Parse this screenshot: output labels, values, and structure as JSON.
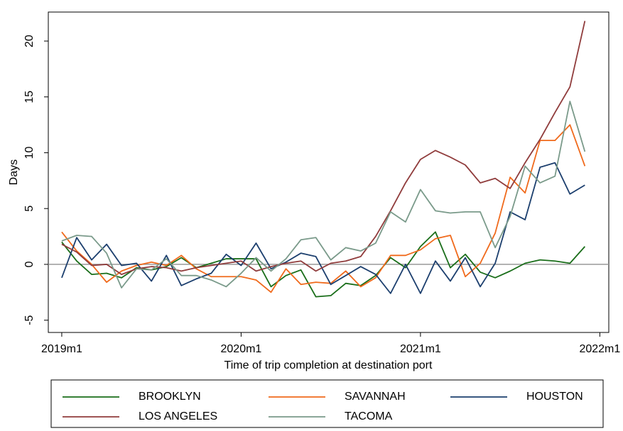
{
  "chart_data": {
    "type": "line",
    "y_label": "Days",
    "x_label": "Time of trip completion at destination port",
    "x": [
      708,
      709,
      710,
      711,
      712,
      713,
      714,
      715,
      716,
      717,
      718,
      719,
      720,
      721,
      722,
      723,
      724,
      725,
      726,
      727,
      728,
      729,
      730,
      731,
      732,
      733,
      734,
      735,
      736,
      737,
      738,
      739,
      740,
      741,
      742,
      743
    ],
    "xlim": [
      707.1,
      744.6
    ],
    "xticks": [
      {
        "value": 708,
        "label": "2019m1"
      },
      {
        "value": 720,
        "label": "2020m1"
      },
      {
        "value": 732,
        "label": "2021m1"
      },
      {
        "value": 744,
        "label": "2022m1"
      }
    ],
    "ylim": [
      -6.1,
      22.6
    ],
    "yticks": [
      -5,
      0,
      5,
      10,
      15,
      20
    ],
    "yline": 0,
    "legend": "bottom",
    "series": [
      {
        "name": "BROOKLYN",
        "color": "#1a6e1a",
        "values": [
          2.0,
          0.3,
          -0.9,
          -0.8,
          -1.2,
          -0.3,
          -0.5,
          -0.2,
          0.6,
          -0.3,
          0.1,
          0.5,
          0.5,
          0.5,
          -2.0,
          -1.0,
          -0.5,
          -2.9,
          -2.8,
          -1.7,
          -1.9,
          -1.0,
          0.6,
          -0.3,
          1.6,
          2.9,
          -0.3,
          0.9,
          -0.7,
          -1.2,
          -0.6,
          0.1,
          0.4,
          0.3,
          0.1,
          1.6
        ]
      },
      {
        "name": "SAVANNAH",
        "color": "#f06a1c",
        "values": [
          2.9,
          1.2,
          0.0,
          -1.6,
          -0.6,
          -0.1,
          0.2,
          -0.1,
          0.8,
          -0.4,
          -1.1,
          -1.1,
          -1.1,
          -1.4,
          -2.5,
          -0.4,
          -1.8,
          -1.6,
          -1.7,
          -0.6,
          -2.0,
          -1.2,
          0.8,
          0.8,
          1.3,
          2.3,
          2.6,
          -1.1,
          0.1,
          2.8,
          7.8,
          6.4,
          11.1,
          11.1,
          12.5,
          8.8
        ]
      },
      {
        "name": "HOUSTON",
        "color": "#1c3f6e",
        "values": [
          -1.2,
          2.4,
          0.4,
          1.8,
          -0.1,
          0.1,
          -1.5,
          0.8,
          -1.9,
          -1.3,
          -0.8,
          0.9,
          -0.1,
          1.9,
          -0.4,
          0.2,
          1.0,
          0.7,
          -1.8,
          -1.0,
          -0.2,
          -0.9,
          -2.6,
          0.0,
          -2.6,
          0.3,
          -1.5,
          0.6,
          -2.0,
          0.1,
          4.7,
          4.0,
          8.7,
          9.1,
          6.3,
          7.1
        ]
      },
      {
        "name": "LOS ANGELES",
        "color": "#903c3c",
        "values": [
          1.8,
          1.1,
          -0.1,
          0.0,
          -0.9,
          -0.4,
          -0.2,
          -0.3,
          -0.6,
          -0.3,
          -0.1,
          0.1,
          0.3,
          -0.6,
          -0.2,
          0.1,
          0.3,
          -0.6,
          0.1,
          0.3,
          0.7,
          2.5,
          4.8,
          7.3,
          9.4,
          10.2,
          9.6,
          8.9,
          7.3,
          7.7,
          6.8,
          9.1,
          11.2,
          13.6,
          15.9,
          21.8
        ]
      },
      {
        "name": "TACOMA",
        "color": "#7a9a8a",
        "values": [
          2.1,
          2.6,
          2.5,
          1.0,
          -2.1,
          -0.4,
          -0.5,
          0.5,
          -1.0,
          -1.0,
          -1.4,
          -2.0,
          -0.8,
          0.6,
          -0.6,
          0.5,
          2.2,
          2.4,
          0.4,
          1.5,
          1.2,
          1.9,
          4.7,
          3.8,
          6.7,
          4.8,
          4.6,
          4.7,
          4.7,
          1.5,
          4.3,
          8.8,
          7.3,
          7.9,
          14.6,
          10.1
        ]
      }
    ]
  }
}
